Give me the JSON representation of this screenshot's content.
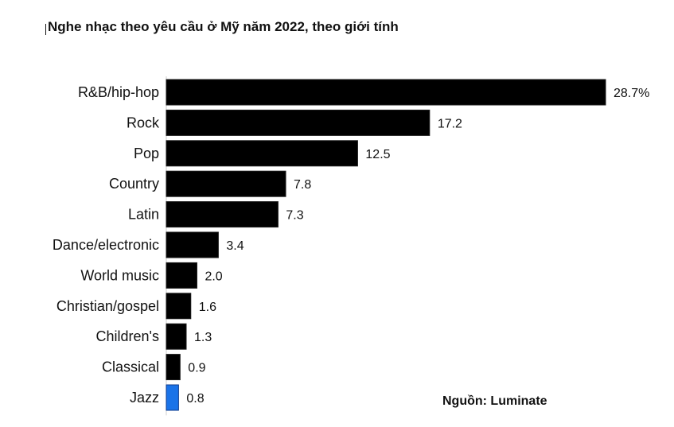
{
  "title": "Nghe nhạc theo yêu cầu ở Mỹ năm 2022, theo giới tính",
  "source": "Nguồn: Luminate",
  "chart_data": {
    "type": "bar",
    "orientation": "horizontal",
    "title": "Nghe nhạc theo yêu cầu ở Mỹ năm 2022, theo giới tính",
    "categories": [
      "R&B/hip-hop",
      "Rock",
      "Pop",
      "Country",
      "Latin",
      "Dance/electronic",
      "World music",
      "Christian/gospel",
      "Children's",
      "Classical",
      "Jazz"
    ],
    "values": [
      28.7,
      17.2,
      12.5,
      7.8,
      7.3,
      3.4,
      2.0,
      1.6,
      1.3,
      0.9,
      0.8
    ],
    "value_labels": [
      "28.7%",
      "17.2",
      "12.5",
      "7.8",
      "7.3",
      "3.4",
      "2.0",
      "1.6",
      "1.3",
      "0.9",
      "0.8"
    ],
    "colors": [
      "#000000",
      "#000000",
      "#000000",
      "#000000",
      "#000000",
      "#000000",
      "#000000",
      "#000000",
      "#000000",
      "#000000",
      "#1a73e8"
    ],
    "bar_outline": "#1a1a1a",
    "highlight_outline": "#0d3b8c",
    "xlim": [
      0,
      28.7
    ],
    "grid": false,
    "legend": "none",
    "xlabel": "",
    "ylabel": ""
  }
}
